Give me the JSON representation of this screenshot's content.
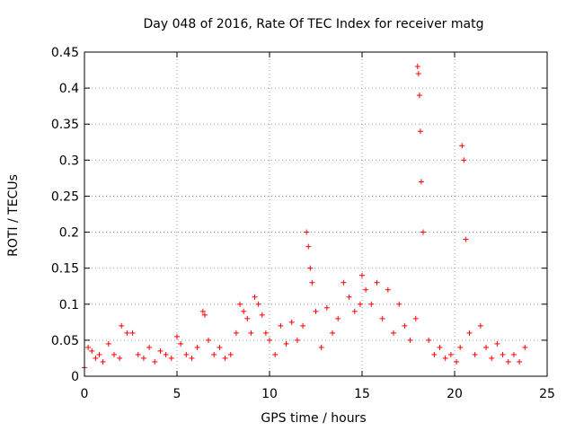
{
  "chart_data": {
    "type": "scatter",
    "title": "Day 048 of 2016, Rate Of TEC Index for receiver matg",
    "xlabel": "GPS time / hours",
    "ylabel": "ROTI / TECUs",
    "xlim": [
      0,
      25
    ],
    "ylim": [
      0,
      0.45
    ],
    "xticks": [
      0,
      5,
      10,
      15,
      20,
      25
    ],
    "xtick_labels": [
      "0",
      "5",
      "10",
      "15",
      "20",
      "25"
    ],
    "yticks": [
      0,
      0.05,
      0.1,
      0.15,
      0.2,
      0.25,
      0.3,
      0.35,
      0.4,
      0.45
    ],
    "ytick_labels": [
      "0",
      "0.05",
      "0.1",
      "0.15",
      "0.2",
      "0.25",
      "0.3",
      "0.35",
      "0.4",
      "0.45"
    ],
    "grid": true,
    "marker": "+",
    "color": "#ff0000",
    "series": [
      {
        "name": "ROTI",
        "x": [
          0.0,
          0.2,
          0.4,
          0.6,
          0.8,
          1.0,
          1.3,
          1.6,
          1.9,
          2.0,
          2.3,
          2.6,
          2.9,
          3.2,
          3.5,
          3.8,
          4.1,
          4.4,
          4.7,
          5.0,
          5.2,
          5.5,
          5.8,
          6.1,
          6.4,
          6.5,
          6.7,
          7.0,
          7.3,
          7.6,
          7.9,
          8.2,
          8.4,
          8.6,
          8.8,
          9.0,
          9.2,
          9.4,
          9.6,
          9.8,
          10.0,
          10.3,
          10.6,
          10.9,
          11.2,
          11.5,
          11.8,
          12.0,
          12.1,
          12.2,
          12.3,
          12.5,
          12.8,
          13.1,
          13.4,
          13.7,
          14.0,
          14.3,
          14.6,
          14.9,
          15.0,
          15.2,
          15.5,
          15.8,
          16.1,
          16.4,
          16.7,
          17.0,
          17.3,
          17.6,
          17.9,
          18.0,
          18.05,
          18.1,
          18.15,
          18.2,
          18.3,
          18.6,
          18.9,
          19.2,
          19.5,
          19.8,
          20.1,
          20.3,
          20.4,
          20.5,
          20.6,
          20.8,
          21.1,
          21.4,
          21.7,
          22.0,
          22.3,
          22.6,
          22.9,
          23.2,
          23.5,
          23.8
        ],
        "y": [
          0.012,
          0.04,
          0.035,
          0.025,
          0.03,
          0.02,
          0.045,
          0.03,
          0.025,
          0.07,
          0.06,
          0.06,
          0.03,
          0.025,
          0.04,
          0.02,
          0.035,
          0.03,
          0.025,
          0.055,
          0.045,
          0.03,
          0.025,
          0.04,
          0.09,
          0.085,
          0.05,
          0.03,
          0.04,
          0.025,
          0.03,
          0.06,
          0.1,
          0.09,
          0.08,
          0.06,
          0.11,
          0.1,
          0.085,
          0.06,
          0.05,
          0.03,
          0.07,
          0.045,
          0.075,
          0.05,
          0.07,
          0.2,
          0.18,
          0.15,
          0.13,
          0.09,
          0.04,
          0.095,
          0.06,
          0.08,
          0.13,
          0.11,
          0.09,
          0.1,
          0.14,
          0.12,
          0.1,
          0.13,
          0.08,
          0.12,
          0.06,
          0.1,
          0.07,
          0.05,
          0.08,
          0.43,
          0.42,
          0.39,
          0.34,
          0.27,
          0.2,
          0.05,
          0.03,
          0.04,
          0.025,
          0.03,
          0.02,
          0.04,
          0.32,
          0.3,
          0.19,
          0.06,
          0.03,
          0.07,
          0.04,
          0.025,
          0.045,
          0.03,
          0.02,
          0.03,
          0.02,
          0.04
        ]
      }
    ]
  }
}
